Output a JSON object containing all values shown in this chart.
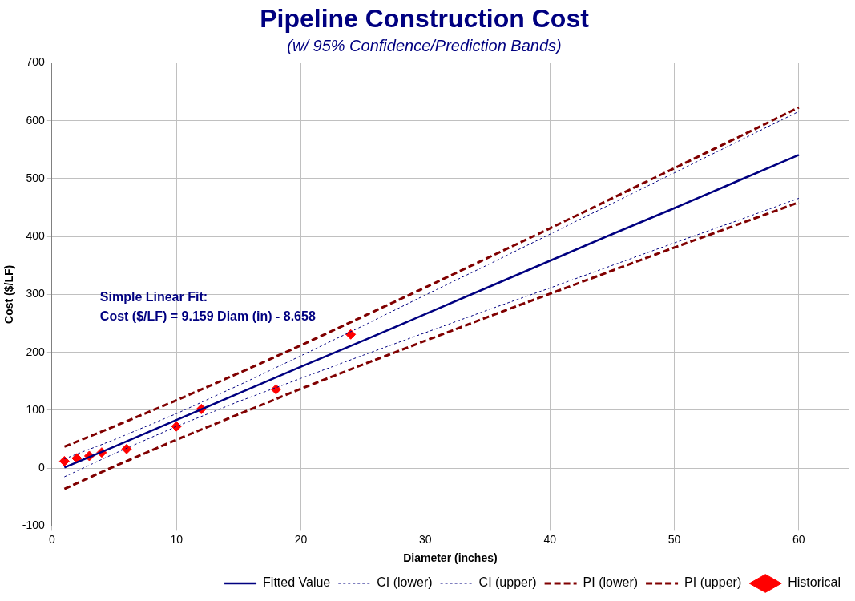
{
  "chart_data": {
    "type": "line",
    "title": "Pipeline Construction Cost",
    "subtitle": "(w/ 95% Confidence/Prediction Bands)",
    "xlabel": "Diameter (inches)",
    "ylabel": "Cost ($/LF)",
    "xlim": [
      0,
      64
    ],
    "xticks": [
      0,
      10,
      20,
      30,
      40,
      50,
      60
    ],
    "ylim": [
      -100,
      700
    ],
    "yticks": [
      -100,
      0,
      100,
      200,
      300,
      400,
      500,
      600,
      700
    ],
    "grid": true,
    "legend": "bottom right",
    "annotations": [
      "Simple Linear Fit:",
      "Cost ($/LF) = 9.159 Diam (in) - 8.658"
    ],
    "series": [
      {
        "name": "Fitted Value",
        "color": "#000080",
        "line_style": "solid",
        "marker": "none",
        "x": [
          1,
          5,
          10,
          15,
          20,
          25,
          30,
          35,
          40,
          45,
          50,
          55,
          60
        ],
        "values": [
          1,
          37,
          83,
          129,
          175,
          220,
          266,
          312,
          358,
          404,
          449,
          495,
          541
        ]
      },
      {
        "name": "CI (lower)",
        "color": "#000080",
        "line_style": "dotted",
        "marker": "none",
        "x": [
          1,
          5,
          10,
          15,
          20,
          25,
          30,
          35,
          40,
          45,
          50,
          55,
          60
        ],
        "values": [
          -15,
          25,
          72,
          115,
          155,
          195,
          234,
          273,
          311,
          350,
          389,
          427,
          466
        ]
      },
      {
        "name": "CI (upper)",
        "color": "#000080",
        "line_style": "dotted",
        "marker": "none",
        "x": [
          1,
          5,
          10,
          15,
          20,
          25,
          30,
          35,
          40,
          45,
          50,
          55,
          60
        ],
        "values": [
          16,
          49,
          94,
          143,
          194,
          246,
          299,
          351,
          404,
          457,
          510,
          563,
          616
        ]
      },
      {
        "name": "PI (lower)",
        "color": "#800000",
        "line_style": "dashed",
        "marker": "none",
        "x": [
          1,
          5,
          10,
          15,
          20,
          25,
          30,
          35,
          40,
          45,
          50,
          55,
          60
        ],
        "values": [
          -36,
          3,
          49,
          93,
          137,
          179,
          220,
          261,
          301,
          341,
          381,
          420,
          459
        ]
      },
      {
        "name": "PI (upper)",
        "color": "#800000",
        "line_style": "dashed",
        "marker": "none",
        "x": [
          1,
          5,
          10,
          15,
          20,
          25,
          30,
          35,
          40,
          45,
          50,
          55,
          60
        ],
        "values": [
          37,
          72,
          117,
          164,
          212,
          262,
          312,
          363,
          414,
          466,
          518,
          570,
          623
        ]
      },
      {
        "name": "Historical",
        "type": "scatter",
        "color": "#ff0000",
        "marker": "diamond",
        "x": [
          1,
          2,
          3,
          4,
          6,
          10,
          12,
          18,
          24
        ],
        "values": [
          12,
          17,
          21,
          27,
          33,
          72,
          102,
          136,
          231
        ]
      }
    ]
  }
}
